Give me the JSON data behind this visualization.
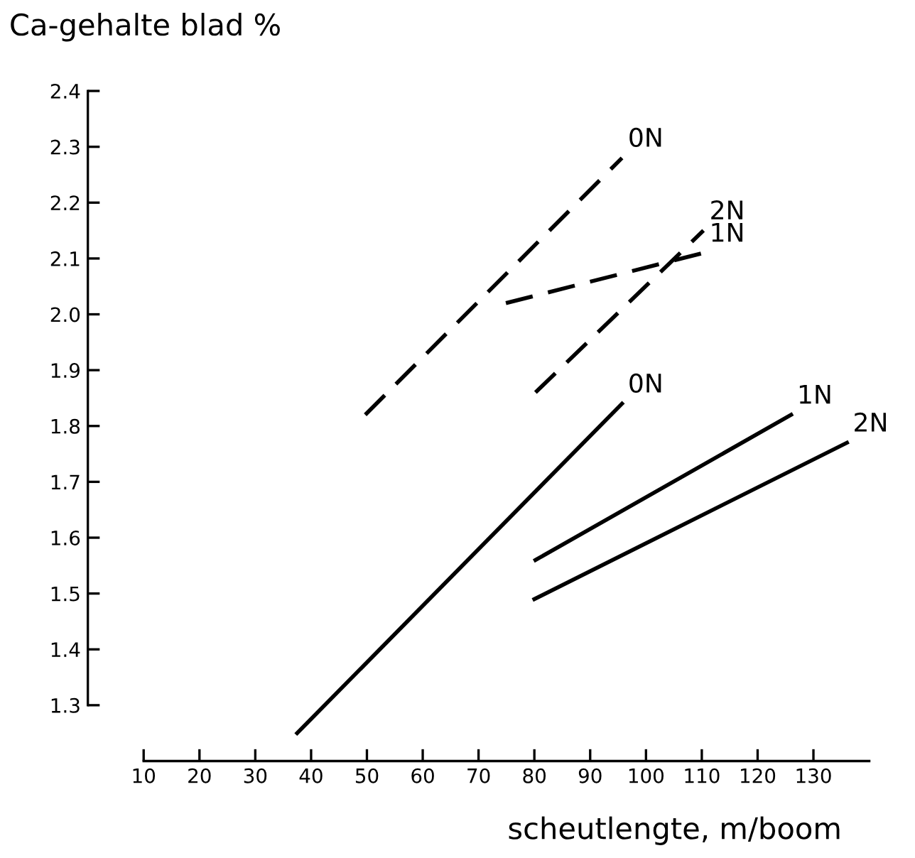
{
  "chart_data": {
    "type": "line",
    "ylabel": "Ca-gehalte blad %",
    "xlabel": "scheutlengte, m/boom",
    "xlim": [
      0,
      140
    ],
    "ylim": [
      1.2,
      2.4
    ],
    "xticks": [
      10,
      20,
      30,
      40,
      50,
      60,
      70,
      80,
      90,
      100,
      110,
      120,
      130
    ],
    "yticks": [
      {
        "value": 1.3,
        "label": "1.3"
      },
      {
        "value": 1.4,
        "label": "1.4"
      },
      {
        "value": 1.5,
        "label": "1.5"
      },
      {
        "value": 1.6,
        "label": "1.6"
      },
      {
        "value": 1.7,
        "label": "1.7"
      },
      {
        "value": 1.8,
        "label": "1.8"
      },
      {
        "value": 1.9,
        "label": "1.9"
      },
      {
        "value": 2.0,
        "label": "2.0"
      },
      {
        "value": 2.1,
        "label": "2.1"
      },
      {
        "value": 2.2,
        "label": "2.2"
      },
      {
        "value": 2.3,
        "label": "2.3"
      },
      {
        "value": 2.4,
        "label": "2.4"
      }
    ],
    "grid": false,
    "legend": false,
    "marker": "none",
    "series": [
      {
        "name": "0N",
        "color": "#000000",
        "line_style": "dashed",
        "x": [
          49.7,
          95.7
        ],
        "values": [
          1.82,
          2.28
        ]
      },
      {
        "name": "2N",
        "color": "#000000",
        "line_style": "dashed",
        "x": [
          80.2,
          110.3
        ],
        "values": [
          1.86,
          2.15
        ]
      },
      {
        "name": "1N",
        "color": "#000000",
        "line_style": "dashed",
        "x": [
          74.9,
          110.3
        ],
        "values": [
          2.02,
          2.11
        ]
      },
      {
        "name": "0N",
        "color": "#000000",
        "line_style": "solid",
        "x": [
          37.5,
          95.7
        ],
        "values": [
          1.25,
          1.84
        ]
      },
      {
        "name": "1N",
        "color": "#000000",
        "line_style": "solid",
        "x": [
          80.2,
          126
        ],
        "values": [
          1.56,
          1.82
        ]
      },
      {
        "name": "2N",
        "color": "#000000",
        "line_style": "solid",
        "x": [
          80,
          136
        ],
        "values": [
          1.49,
          1.77
        ]
      }
    ]
  }
}
